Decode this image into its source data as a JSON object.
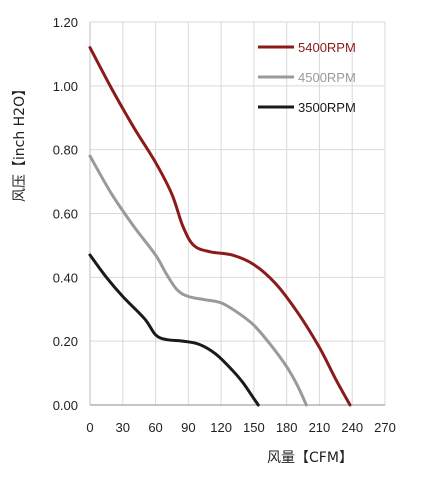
{
  "chart_data": {
    "type": "line",
    "title": "",
    "xlabel": "风量【CFM】",
    "ylabel": "风压【inch H2O】",
    "xlim": [
      0,
      270
    ],
    "ylim": [
      0,
      1.2
    ],
    "x_ticks": [
      "0",
      "30",
      "60",
      "90",
      "120",
      "150",
      "180",
      "210",
      "240",
      "270"
    ],
    "y_ticks": [
      "0.00",
      "0.20",
      "0.40",
      "0.60",
      "0.80",
      "1.00",
      "1.20"
    ],
    "grid": true,
    "legend_position": "top-right",
    "series": [
      {
        "name": "5400RPM",
        "color": "#8b1a1a",
        "x": [
          0,
          20,
          40,
          60,
          75,
          85,
          95,
          110,
          130,
          150,
          170,
          190,
          210,
          225,
          238
        ],
        "y": [
          1.12,
          0.99,
          0.87,
          0.76,
          0.66,
          0.56,
          0.5,
          0.48,
          0.47,
          0.44,
          0.38,
          0.29,
          0.18,
          0.08,
          0
        ]
      },
      {
        "name": "4500RPM",
        "color": "#9a9a9a",
        "x": [
          0,
          20,
          40,
          60,
          70,
          80,
          90,
          105,
          120,
          135,
          150,
          165,
          180,
          190,
          198
        ],
        "y": [
          0.78,
          0.66,
          0.56,
          0.47,
          0.41,
          0.36,
          0.34,
          0.33,
          0.32,
          0.29,
          0.25,
          0.19,
          0.12,
          0.06,
          0
        ]
      },
      {
        "name": "3500RPM",
        "color": "#1a1a1a",
        "x": [
          0,
          15,
          30,
          50,
          60,
          70,
          85,
          100,
          115,
          130,
          140,
          148,
          154
        ],
        "y": [
          0.47,
          0.4,
          0.34,
          0.27,
          0.22,
          0.205,
          0.2,
          0.19,
          0.16,
          0.11,
          0.07,
          0.03,
          0
        ]
      }
    ]
  }
}
